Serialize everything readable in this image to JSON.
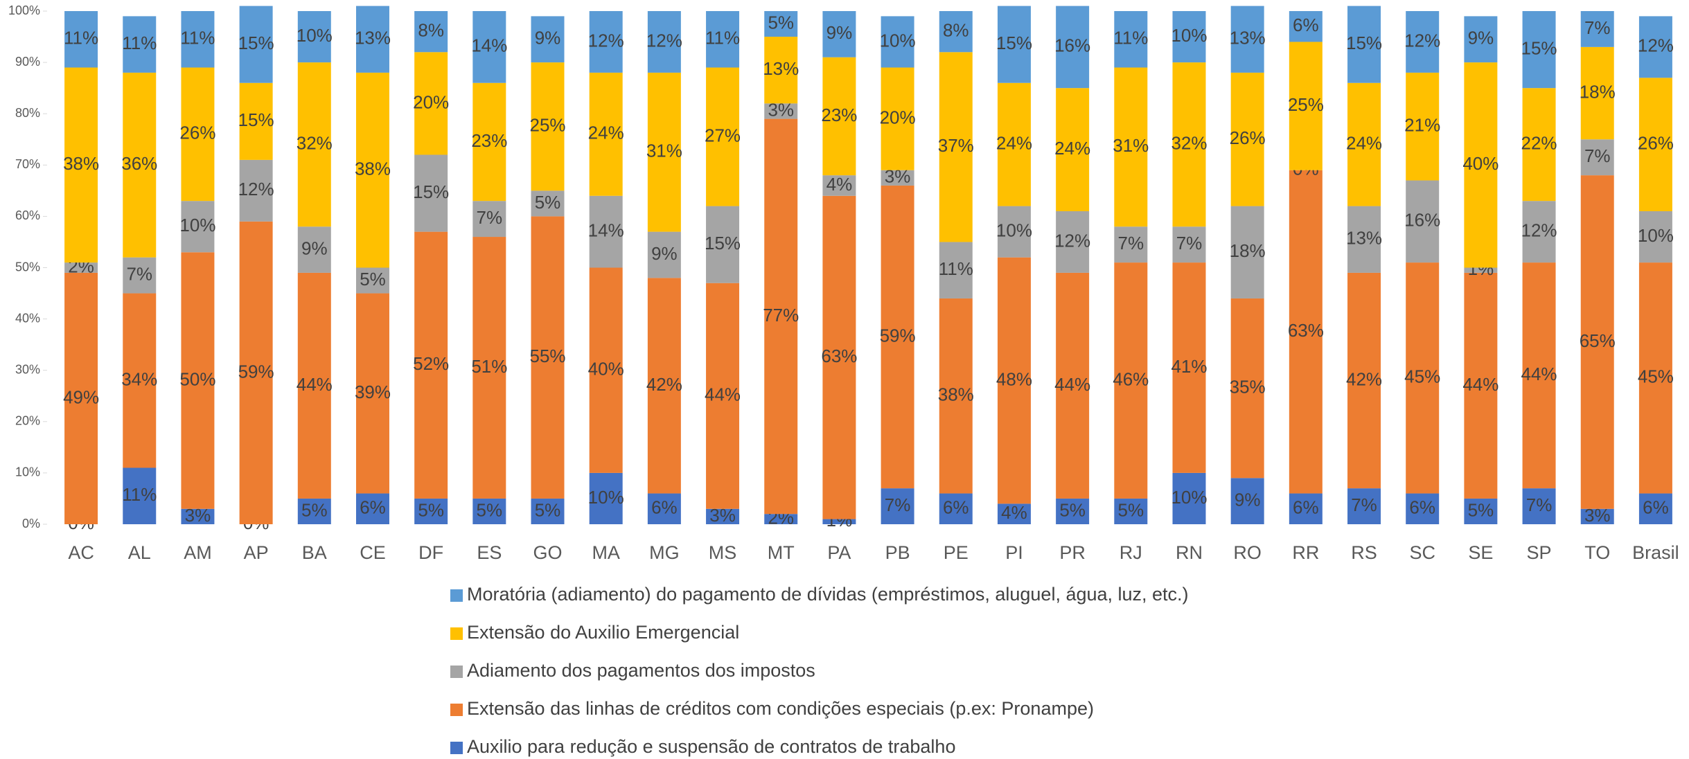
{
  "chart_data": {
    "type": "stacked_bar",
    "categories": [
      "AC",
      "AL",
      "AM",
      "AP",
      "BA",
      "CE",
      "DF",
      "ES",
      "GO",
      "MA",
      "MG",
      "MS",
      "MT",
      "PA",
      "PB",
      "PE",
      "PI",
      "PR",
      "RJ",
      "RN",
      "RO",
      "RR",
      "RS",
      "SC",
      "SE",
      "SP",
      "TO",
      "Brasil"
    ],
    "series": [
      {
        "name": "Moratória (adiamento) do pagamento de dívidas (empréstimos, aluguel, água, luz, etc.)",
        "color": "#5b9bd5",
        "values": [
          11,
          11,
          11,
          15,
          10,
          13,
          8,
          14,
          9,
          12,
          12,
          11,
          5,
          9,
          10,
          8,
          15,
          16,
          11,
          10,
          13,
          6,
          15,
          12,
          9,
          15,
          7,
          12
        ],
        "value_labels": [
          "11%",
          "11%",
          "11%",
          "15%",
          "10%",
          "13%",
          "8%",
          "14%",
          "9%",
          "12%",
          "12%",
          "11%",
          "5%",
          "9%",
          "10%",
          "8%",
          "15%",
          "16%",
          "11%",
          "10%",
          "13%",
          "6%",
          "15%",
          "12%",
          "9%",
          "15%",
          "7%",
          "12%"
        ]
      },
      {
        "name": "Extensão do Auxilio Emergencial",
        "color": "#ffc000",
        "values": [
          38,
          36,
          26,
          15,
          32,
          38,
          20,
          23,
          25,
          24,
          31,
          27,
          13,
          23,
          20,
          37,
          24,
          24,
          31,
          32,
          26,
          25,
          24,
          21,
          40,
          22,
          18,
          26
        ],
        "value_labels": [
          "38%",
          "36%",
          "26%",
          "15%",
          "32%",
          "38%",
          "20%",
          "23%",
          "25%",
          "24%",
          "31%",
          "27%",
          "13%",
          "23%",
          "20%",
          "37%",
          "24%",
          "24%",
          "31%",
          "32%",
          "26%",
          "25%",
          "24%",
          "21%",
          "40%",
          "22%",
          "18%",
          "26%"
        ]
      },
      {
        "name": "Adiamento dos pagamentos dos impostos",
        "color": "#a5a5a5",
        "values": [
          2,
          7,
          10,
          12,
          9,
          5,
          15,
          7,
          5,
          14,
          9,
          15,
          3,
          4,
          3,
          11,
          10,
          12,
          7,
          7,
          18,
          0,
          13,
          16,
          1,
          12,
          7,
          10
        ],
        "value_labels": [
          "2%",
          "7%",
          "10%",
          "12%",
          "9%",
          "5%",
          "15%",
          "7%",
          "5%",
          "14%",
          "9%",
          "15%",
          "3%",
          "4%",
          "3%",
          "11%",
          "10%",
          "12%",
          "7%",
          "7%",
          "18%",
          "0%",
          "13%",
          "16%",
          "1%",
          "12%",
          "7%",
          "10%"
        ]
      },
      {
        "name": "Extensão das linhas de créditos com condições especiais (p.ex: Pronampe)",
        "color": "#ed7d31",
        "values": [
          49,
          34,
          50,
          59,
          44,
          39,
          52,
          51,
          55,
          40,
          42,
          44,
          77,
          63,
          59,
          38,
          48,
          44,
          46,
          41,
          35,
          63,
          42,
          45,
          44,
          44,
          65,
          45
        ],
        "value_labels": [
          "49%",
          "34%",
          "50%",
          "59%",
          "44%",
          "39%",
          "52%",
          "51%",
          "55%",
          "40%",
          "42%",
          "44%",
          "77%",
          "63%",
          "59%",
          "38%",
          "48%",
          "44%",
          "46%",
          "41%",
          "35%",
          "63%",
          "42%",
          "45%",
          "44%",
          "44%",
          "65%",
          "45%"
        ]
      },
      {
        "name": "Auxilio para redução e suspensão de contratos de trabalho",
        "color": "#4472c4",
        "values": [
          0,
          11,
          3,
          0,
          5,
          6,
          5,
          5,
          5,
          10,
          6,
          3,
          2,
          1,
          7,
          6,
          4,
          5,
          5,
          10,
          9,
          6,
          7,
          6,
          5,
          7,
          3,
          6
        ],
        "value_labels": [
          "0%",
          "11%",
          "3%",
          "0%",
          "5%",
          "6%",
          "5%",
          "5%",
          "5%",
          "10%",
          "6%",
          "3%",
          "2%",
          "1%",
          "7%",
          "6%",
          "4%",
          "5%",
          "5%",
          "10%",
          "9%",
          "6%",
          "7%",
          "6%",
          "5%",
          "7%",
          "3%",
          "6%"
        ]
      }
    ],
    "ylim": [
      0,
      100
    ],
    "yticks": [
      {
        "value": 0,
        "label": "0%"
      },
      {
        "value": 10,
        "label": "10%"
      },
      {
        "value": 20,
        "label": "20%"
      },
      {
        "value": 30,
        "label": "30%"
      },
      {
        "value": 40,
        "label": "40%"
      },
      {
        "value": 50,
        "label": "50%"
      },
      {
        "value": 60,
        "label": "60%"
      },
      {
        "value": 70,
        "label": "70%"
      },
      {
        "value": 80,
        "label": "80%"
      },
      {
        "value": 90,
        "label": "90%"
      },
      {
        "value": 100,
        "label": "100%"
      }
    ],
    "legend": "bottom"
  }
}
